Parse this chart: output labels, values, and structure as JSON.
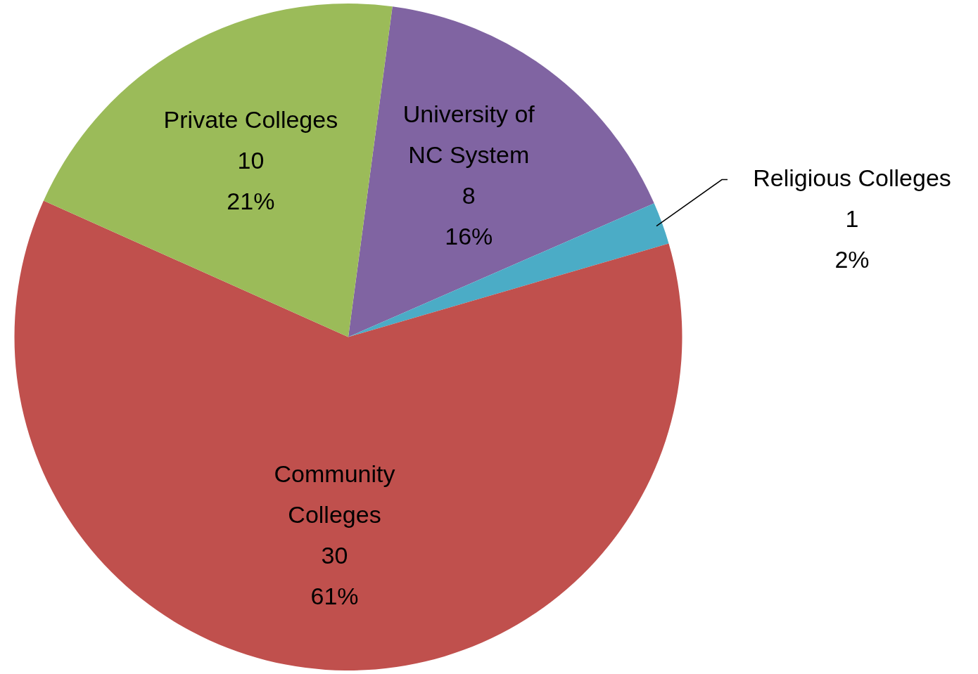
{
  "chart_data": {
    "type": "pie",
    "categories": [
      "University of\nNC System",
      "Religious Colleges",
      "Community\nColleges",
      "Private Colleges"
    ],
    "values": [
      8,
      1,
      30,
      10
    ],
    "colors": [
      "#8064a2",
      "#4bacc6",
      "#c0504d",
      "#9bbb59"
    ],
    "value_labels": [
      "8\n16%",
      "1\n2%",
      "30\n61%",
      "10\n21%"
    ],
    "legend": false
  }
}
